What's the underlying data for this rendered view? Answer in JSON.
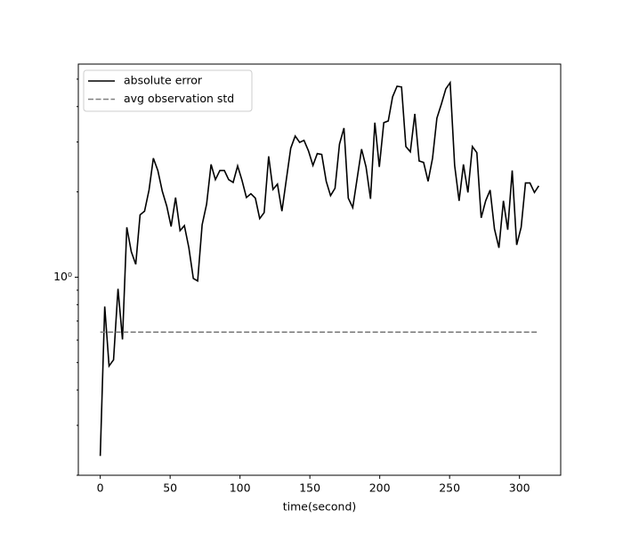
{
  "chart_data": {
    "type": "line",
    "xlabel": "time(second)",
    "xlim": [
      -15.7,
      329.5
    ],
    "xticks": [
      0,
      50,
      100,
      150,
      200,
      250,
      300
    ],
    "ylim": [
      0.2,
      5.65
    ],
    "ylog": true,
    "yticks": [
      {
        "value": 1,
        "label": "10⁰"
      }
    ],
    "yticks_minor": [
      0.2,
      0.3,
      0.4,
      0.5,
      0.6,
      0.7,
      0.8,
      0.9,
      2,
      3,
      4,
      5
    ],
    "legend": "upper left",
    "series": [
      {
        "name": "absolute error",
        "color": "#000000",
        "dash": "solid",
        "x": [
          0,
          3.2,
          6.3,
          9.5,
          12.7,
          15.9,
          19.0,
          22.2,
          25.4,
          28.5,
          31.7,
          34.9,
          38.0,
          41.2,
          44.4,
          47.6,
          50.7,
          53.9,
          57.1,
          60.2,
          63.4,
          66.6,
          69.7,
          72.9,
          76.1,
          79.3,
          82.4,
          85.6,
          88.8,
          91.9,
          95.1,
          98.3,
          101.4,
          104.6,
          107.8,
          111.0,
          114.1,
          117.3,
          120.5,
          123.6,
          126.8,
          130.0,
          133.1,
          136.3,
          139.5,
          142.7,
          145.8,
          149.0,
          152.2,
          155.3,
          158.5,
          161.7,
          164.8,
          168.0,
          171.2,
          174.4,
          177.5,
          180.7,
          183.9,
          187.0,
          190.2,
          193.4,
          196.5,
          199.7,
          202.9,
          206.1,
          209.2,
          212.4,
          215.6,
          218.7,
          221.9,
          225.1,
          228.2,
          231.4,
          234.6,
          237.8,
          240.9,
          244.1,
          247.3,
          250.4,
          253.6,
          256.8,
          259.9,
          263.1,
          266.3,
          269.5,
          272.6,
          275.8,
          279.0,
          282.1,
          285.3,
          288.5,
          291.6,
          294.8,
          298.0,
          301.2,
          304.3,
          307.5,
          310.7,
          313.8
        ],
        "values": [
          0.234,
          0.788,
          0.486,
          0.511,
          0.91,
          0.603,
          1.5,
          1.23,
          1.11,
          1.66,
          1.71,
          2.03,
          2.63,
          2.38,
          2.01,
          1.78,
          1.51,
          1.91,
          1.46,
          1.52,
          1.27,
          0.99,
          0.97,
          1.53,
          1.81,
          2.5,
          2.21,
          2.38,
          2.38,
          2.21,
          2.16,
          2.47,
          2.2,
          1.91,
          1.97,
          1.9,
          1.61,
          1.69,
          2.67,
          2.04,
          2.13,
          1.71,
          2.2,
          2.85,
          3.15,
          2.99,
          3.04,
          2.79,
          2.48,
          2.73,
          2.71,
          2.18,
          1.94,
          2.06,
          2.95,
          3.36,
          1.9,
          1.76,
          2.24,
          2.83,
          2.45,
          1.89,
          3.51,
          2.45,
          3.51,
          3.56,
          4.33,
          4.72,
          4.69,
          2.89,
          2.77,
          3.77,
          2.57,
          2.54,
          2.18,
          2.63,
          3.64,
          4.08,
          4.62,
          4.86,
          2.48,
          1.86,
          2.5,
          1.99,
          2.89,
          2.75,
          1.62,
          1.86,
          2.03,
          1.48,
          1.27,
          1.86,
          1.47,
          2.38,
          1.3,
          1.5,
          2.15,
          2.15,
          1.99,
          2.1
        ]
      },
      {
        "name": "avg observation std",
        "color": "#808080",
        "dash": "dashed",
        "x": [
          0,
          313.8
        ],
        "values": [
          0.64,
          0.64
        ]
      }
    ]
  }
}
